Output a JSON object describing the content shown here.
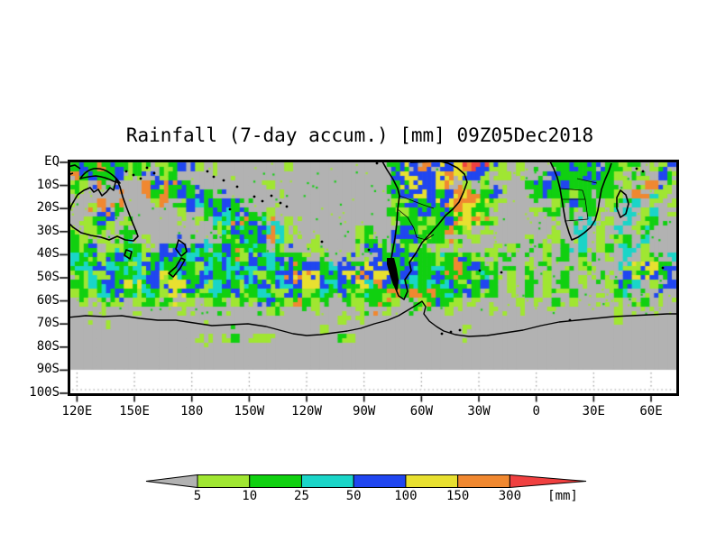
{
  "chart_data": {
    "type": "heatmap",
    "title": "Rainfall (7-day accum.) [mm] 09Z05Dec2018",
    "x_axis": {
      "ticks": [
        "120E",
        "150E",
        "180",
        "150W",
        "120W",
        "90W",
        "60W",
        "30W",
        "0",
        "30E",
        "60E"
      ]
    },
    "y_axis": {
      "ticks": [
        "EQ",
        "10S",
        "20S",
        "30S",
        "40S",
        "50S",
        "60S",
        "70S",
        "80S",
        "90S",
        "100S"
      ]
    },
    "colorbar": {
      "levels": [
        "5",
        "10",
        "25",
        "50",
        "100",
        "150",
        "300"
      ],
      "unit": "[mm]",
      "colors": [
        "#b2b2b2",
        "#a0e632",
        "#10d010",
        "#1ad5c8",
        "#2046f0",
        "#e8e030",
        "#f08830",
        "#f04040"
      ],
      "meaning": "grey arrow = below 5 mm, red arrow = above 300 mm"
    },
    "background_color": "#ffffff",
    "no_data_color": "#b2b2b2",
    "palette": {
      ".": "#b2b2b2",
      "g": "#a0e632",
      "G": "#10d010",
      "c": "#1ad5c8",
      "b": "#2046f0",
      "y": "#e8e030",
      "o": "#f08830",
      "r": "#f04040"
    },
    "grid": {
      "cols": 68,
      "rows_note": "coarse 4.7deg x 3.9deg rainfall cells, EQ (top) to 90S (bottom), 115E eastward to 75E",
      "rows": [
        "GbGoGbGGg.gGb.g.g.......g...........Gbbobbbyorbgg.g.G.GGbGGbGGgG.gGbG.b",
        "oGbGGbgG.bgG.....g..................bybbbyoybbg.g.g..GbGGGbGGg.Gg.bG.o",
        "Gg.o....oboGbG........g.............Gbybbyoгg.g....GGbGbGGGGG.g.oo.g",
        "g.......oGoGbGbG.......g............GbbybGboyoGbg...GbGGgG.GGg.o.cg.",
        "..go.o...g..GbcbGbG.................gGbGbbyooyGg......gGbGG.gG.c.g.g",
        "...obG......g..GbcGbG.g.............GgGbGGGoyGg.....gGG.g.Gg..c.gc",
        ".gGbg.g.......g.GcoGbGc.g...........gGGGgGbGyoGg......g.G.c.g.c.gG",
        "g.gGg.G.........gGbcGboc.g......gG..GbGgGGoGg.g.......gG.c.g.c.gG.",
        "Gg.g.gG.g........gGbGbocg..g....gG..bGbGgG.g.g......g.g.gc.g.gG.c.",
        "GgG.gGcGg.bGbGbcGboGcG.g...g....gGbGbGgG.g.g...g.g.G.g.G.c.gG.c.g.",
        "cGbgGbGcgGbbGcbGcbGgbGcGbGg.g..g..gGbGbGGgGbGg.gG.g..g.G.gG.g.c.gG.c",
        "GcGbcGgcbGcGbGgcGbcGbbcGbGbbGcbbGybbGbbGGcGoGbGg.G.g.G.g.Gg..c.gbyGb",
        "gGcgbGGcgbyGcGbbGcGbcgGbboyybGbyobyyGbcGGbGoGgcG.g.G.g.G.g.Gg.byGbG.",
        "GgcGbGycGbgyybGgcbGcGbgcbbyybcbGyyobGbcGcGbGgGbG.g.G.g.G.g..gbGc.g.b",
        "gGgcGbGgcGgybGgGcGbgGcGgbGgGcGbgGcGgoGoGoGcGbGgG.g.G.g.gG..g.Gc.g.b.",
        ".g.gGg.gGgGg.g.gG.gGgGbGgoGgG..GgGoGg.GgGbGg.g.g..g.g.G.g....g.gG.g.",
        "..g....g....g....g....gG...g....g..g......g....g......g......g...g..",
        "....g..........g..............g.g............................g......",
        "............................g...............g......................",
        "..........  ..gg.gG.ggg.......Gg....................................",
        "....................................................................",
        "....................................................................",
        "...................................................................."
      ]
    }
  }
}
